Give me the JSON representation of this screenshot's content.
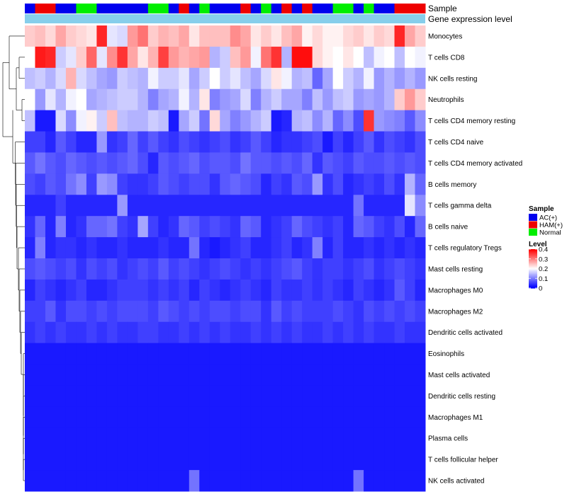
{
  "chart_data": {
    "type": "heatmap",
    "annotation_labels": [
      "Sample",
      "Gene expression level"
    ],
    "sample_groups": [
      "AC(+)",
      "HAM(+)",
      "HAM(+)",
      "AC(+)",
      "AC(+)",
      "Normal",
      "Normal",
      "AC(+)",
      "AC(+)",
      "AC(+)",
      "AC(+)",
      "AC(+)",
      "Normal",
      "Normal",
      "AC(+)",
      "HAM(+)",
      "AC(+)",
      "Normal",
      "AC(+)",
      "AC(+)",
      "AC(+)",
      "HAM(+)",
      "AC(+)",
      "Normal",
      "AC(+)",
      "HAM(+)",
      "AC(+)",
      "HAM(+)",
      "AC(+)",
      "AC(+)",
      "Normal",
      "Normal",
      "AC(+)",
      "Normal",
      "AC(+)",
      "AC(+)",
      "HAM(+)",
      "HAM(+)",
      "HAM(+)"
    ],
    "rows": [
      "Monocytes",
      "T cells CD8",
      "NK cells resting",
      "Neutrophils",
      "T cells CD4 memory resting",
      "T cells CD4 naive",
      "T cells CD4 memory activated",
      "B cells memory",
      "T cells gamma delta",
      "B cells naive",
      "T cells regulatory  Tregs",
      "Mast cells resting",
      "Macrophages M0",
      "Macrophages M2",
      "Dendritic cells activated",
      "Eosinophils",
      "Mast cells activated",
      "Dendritic cells resting",
      "Macrophages M1",
      "Plasma cells",
      "T cells follicular helper",
      "NK cells activated"
    ],
    "values": [
      [
        0.24,
        0.25,
        0.23,
        0.27,
        0.24,
        0.23,
        0.22,
        0.37,
        0.18,
        0.17,
        0.28,
        0.31,
        0.24,
        0.26,
        0.25,
        0.27,
        0.22,
        0.25,
        0.25,
        0.25,
        0.29,
        0.27,
        0.22,
        0.24,
        0.22,
        0.25,
        0.27,
        0.21,
        0.23,
        0.21,
        0.21,
        0.23,
        0.24,
        0.22,
        0.24,
        0.23,
        0.37,
        0.27,
        0.24
      ],
      [
        0.2,
        0.38,
        0.37,
        0.16,
        0.18,
        0.24,
        0.32,
        0.18,
        0.29,
        0.36,
        0.27,
        0.22,
        0.26,
        0.35,
        0.28,
        0.26,
        0.27,
        0.28,
        0.14,
        0.16,
        0.25,
        0.28,
        0.19,
        0.31,
        0.36,
        0.14,
        0.39,
        0.39,
        0.23,
        0.21,
        0.2,
        0.22,
        0.2,
        0.15,
        0.19,
        0.2,
        0.15,
        0.2,
        0.19
      ],
      [
        0.15,
        0.16,
        0.14,
        0.17,
        0.26,
        0.17,
        0.15,
        0.13,
        0.12,
        0.16,
        0.15,
        0.14,
        0.19,
        0.16,
        0.16,
        0.18,
        0.13,
        0.16,
        0.2,
        0.16,
        0.18,
        0.15,
        0.13,
        0.17,
        0.22,
        0.19,
        0.14,
        0.15,
        0.08,
        0.13,
        0.2,
        0.16,
        0.14,
        0.19,
        0.12,
        0.14,
        0.12,
        0.14,
        0.12
      ],
      [
        0.2,
        0.12,
        0.18,
        0.14,
        0.19,
        0.2,
        0.13,
        0.14,
        0.15,
        0.16,
        0.16,
        0.14,
        0.1,
        0.13,
        0.14,
        0.19,
        0.14,
        0.22,
        0.1,
        0.12,
        0.13,
        0.17,
        0.1,
        0.14,
        0.16,
        0.13,
        0.13,
        0.1,
        0.15,
        0.12,
        0.15,
        0.16,
        0.12,
        0.13,
        0.12,
        0.14,
        0.24,
        0.28,
        0.24
      ],
      [
        0.15,
        0.02,
        0.02,
        0.17,
        0.11,
        0.19,
        0.21,
        0.16,
        0.25,
        0.15,
        0.14,
        0.14,
        0.16,
        0.15,
        0.02,
        0.13,
        0.16,
        0.09,
        0.23,
        0.13,
        0.1,
        0.12,
        0.14,
        0.16,
        0.02,
        0.03,
        0.14,
        0.15,
        0.11,
        0.14,
        0.08,
        0.11,
        0.06,
        0.36,
        0.12,
        0.11,
        0.1,
        0.07,
        0.11
      ],
      [
        0.05,
        0.05,
        0.03,
        0.07,
        0.05,
        0.03,
        0.03,
        0.12,
        0.04,
        0.05,
        0.08,
        0.05,
        0.07,
        0.05,
        0.04,
        0.06,
        0.05,
        0.04,
        0.05,
        0.06,
        0.04,
        0.05,
        0.07,
        0.05,
        0.03,
        0.04,
        0.04,
        0.05,
        0.06,
        0.02,
        0.05,
        0.03,
        0.05,
        0.07,
        0.04,
        0.06,
        0.05,
        0.04,
        0.06
      ],
      [
        0.07,
        0.09,
        0.07,
        0.06,
        0.08,
        0.07,
        0.06,
        0.07,
        0.06,
        0.07,
        0.08,
        0.06,
        0.03,
        0.07,
        0.06,
        0.07,
        0.08,
        0.06,
        0.07,
        0.07,
        0.06,
        0.09,
        0.07,
        0.07,
        0.06,
        0.07,
        0.06,
        0.08,
        0.04,
        0.07,
        0.06,
        0.05,
        0.07,
        0.06,
        0.06,
        0.07,
        0.06,
        0.07,
        0.06
      ],
      [
        0.06,
        0.05,
        0.07,
        0.06,
        0.09,
        0.11,
        0.05,
        0.12,
        0.11,
        0.05,
        0.04,
        0.04,
        0.05,
        0.07,
        0.06,
        0.05,
        0.06,
        0.06,
        0.04,
        0.07,
        0.08,
        0.07,
        0.06,
        0.03,
        0.05,
        0.04,
        0.07,
        0.06,
        0.12,
        0.04,
        0.06,
        0.03,
        0.04,
        0.05,
        0.04,
        0.06,
        0.04,
        0.14,
        0.08
      ],
      [
        0.03,
        0.03,
        0.03,
        0.05,
        0.03,
        0.03,
        0.03,
        0.03,
        0.03,
        0.12,
        0.03,
        0.03,
        0.03,
        0.03,
        0.03,
        0.03,
        0.03,
        0.03,
        0.03,
        0.03,
        0.03,
        0.03,
        0.03,
        0.03,
        0.03,
        0.03,
        0.03,
        0.03,
        0.03,
        0.03,
        0.03,
        0.03,
        0.09,
        0.03,
        0.03,
        0.03,
        0.03,
        0.18,
        0.11
      ],
      [
        0.04,
        0.08,
        0.03,
        0.1,
        0.03,
        0.04,
        0.08,
        0.08,
        0.09,
        0.05,
        0.04,
        0.13,
        0.05,
        0.03,
        0.04,
        0.08,
        0.07,
        0.05,
        0.06,
        0.05,
        0.04,
        0.08,
        0.07,
        0.03,
        0.04,
        0.05,
        0.08,
        0.06,
        0.05,
        0.04,
        0.05,
        0.03,
        0.08,
        0.07,
        0.05,
        0.04,
        0.06,
        0.03,
        0.08
      ],
      [
        0.03,
        0.1,
        0.03,
        0.04,
        0.04,
        0.03,
        0.04,
        0.03,
        0.03,
        0.04,
        0.03,
        0.03,
        0.03,
        0.04,
        0.03,
        0.03,
        0.09,
        0.03,
        0.02,
        0.03,
        0.04,
        0.05,
        0.03,
        0.03,
        0.04,
        0.05,
        0.03,
        0.04,
        0.1,
        0.03,
        0.05,
        0.03,
        0.03,
        0.04,
        0.03,
        0.04,
        0.03,
        0.04,
        0.03
      ],
      [
        0.06,
        0.07,
        0.06,
        0.05,
        0.06,
        0.04,
        0.06,
        0.05,
        0.06,
        0.04,
        0.05,
        0.06,
        0.05,
        0.07,
        0.05,
        0.06,
        0.05,
        0.04,
        0.05,
        0.06,
        0.05,
        0.04,
        0.05,
        0.04,
        0.05,
        0.06,
        0.07,
        0.05,
        0.04,
        0.05,
        0.05,
        0.04,
        0.05,
        0.06,
        0.04,
        0.05,
        0.06,
        0.05,
        0.04
      ],
      [
        0.03,
        0.05,
        0.04,
        0.03,
        0.04,
        0.05,
        0.03,
        0.03,
        0.04,
        0.05,
        0.05,
        0.05,
        0.04,
        0.05,
        0.04,
        0.05,
        0.03,
        0.05,
        0.04,
        0.03,
        0.04,
        0.05,
        0.04,
        0.03,
        0.05,
        0.04,
        0.04,
        0.05,
        0.04,
        0.05,
        0.04,
        0.03,
        0.05,
        0.04,
        0.03,
        0.04,
        0.07,
        0.05,
        0.03
      ],
      [
        0.05,
        0.05,
        0.07,
        0.04,
        0.06,
        0.06,
        0.05,
        0.06,
        0.05,
        0.06,
        0.06,
        0.06,
        0.05,
        0.07,
        0.06,
        0.05,
        0.06,
        0.05,
        0.06,
        0.06,
        0.05,
        0.06,
        0.06,
        0.04,
        0.07,
        0.05,
        0.06,
        0.05,
        0.05,
        0.05,
        0.06,
        0.05,
        0.04,
        0.06,
        0.05,
        0.06,
        0.05,
        0.06,
        0.05
      ],
      [
        0.04,
        0.05,
        0.04,
        0.05,
        0.04,
        0.04,
        0.05,
        0.04,
        0.05,
        0.04,
        0.04,
        0.05,
        0.05,
        0.04,
        0.04,
        0.05,
        0.04,
        0.05,
        0.04,
        0.05,
        0.04,
        0.04,
        0.05,
        0.04,
        0.05,
        0.04,
        0.05,
        0.04,
        0.04,
        0.05,
        0.04,
        0.05,
        0.04,
        0.05,
        0.04,
        0.04,
        0.05,
        0.04,
        0.04
      ],
      [
        0.02,
        0.02,
        0.02,
        0.02,
        0.02,
        0.02,
        0.02,
        0.02,
        0.02,
        0.02,
        0.02,
        0.02,
        0.02,
        0.02,
        0.02,
        0.02,
        0.02,
        0.02,
        0.02,
        0.02,
        0.02,
        0.02,
        0.02,
        0.02,
        0.02,
        0.02,
        0.02,
        0.02,
        0.02,
        0.02,
        0.02,
        0.02,
        0.02,
        0.02,
        0.02,
        0.02,
        0.02,
        0.02,
        0.02
      ],
      [
        0.02,
        0.02,
        0.02,
        0.02,
        0.02,
        0.02,
        0.02,
        0.02,
        0.02,
        0.02,
        0.02,
        0.02,
        0.02,
        0.02,
        0.02,
        0.02,
        0.02,
        0.02,
        0.02,
        0.02,
        0.02,
        0.02,
        0.02,
        0.02,
        0.02,
        0.02,
        0.02,
        0.02,
        0.02,
        0.02,
        0.02,
        0.02,
        0.02,
        0.02,
        0.02,
        0.02,
        0.02,
        0.02,
        0.02
      ],
      [
        0.02,
        0.02,
        0.02,
        0.02,
        0.02,
        0.02,
        0.02,
        0.02,
        0.02,
        0.02,
        0.02,
        0.02,
        0.02,
        0.02,
        0.02,
        0.02,
        0.02,
        0.02,
        0.02,
        0.02,
        0.02,
        0.02,
        0.02,
        0.02,
        0.02,
        0.02,
        0.02,
        0.02,
        0.02,
        0.02,
        0.02,
        0.02,
        0.02,
        0.02,
        0.02,
        0.02,
        0.02,
        0.02,
        0.02
      ],
      [
        0.02,
        0.02,
        0.02,
        0.02,
        0.02,
        0.02,
        0.02,
        0.02,
        0.02,
        0.02,
        0.02,
        0.02,
        0.02,
        0.02,
        0.02,
        0.02,
        0.02,
        0.02,
        0.02,
        0.02,
        0.02,
        0.02,
        0.02,
        0.02,
        0.02,
        0.02,
        0.02,
        0.02,
        0.02,
        0.02,
        0.02,
        0.02,
        0.02,
        0.02,
        0.02,
        0.02,
        0.02,
        0.02,
        0.02
      ],
      [
        0.02,
        0.02,
        0.02,
        0.02,
        0.02,
        0.02,
        0.02,
        0.02,
        0.02,
        0.02,
        0.02,
        0.02,
        0.02,
        0.02,
        0.02,
        0.02,
        0.02,
        0.02,
        0.02,
        0.02,
        0.02,
        0.02,
        0.02,
        0.02,
        0.02,
        0.02,
        0.02,
        0.02,
        0.02,
        0.02,
        0.02,
        0.02,
        0.02,
        0.02,
        0.02,
        0.02,
        0.02,
        0.02,
        0.02
      ],
      [
        0.02,
        0.02,
        0.02,
        0.02,
        0.02,
        0.02,
        0.02,
        0.02,
        0.02,
        0.02,
        0.02,
        0.02,
        0.02,
        0.02,
        0.02,
        0.02,
        0.02,
        0.02,
        0.02,
        0.02,
        0.02,
        0.02,
        0.02,
        0.02,
        0.02,
        0.02,
        0.02,
        0.02,
        0.02,
        0.02,
        0.02,
        0.02,
        0.02,
        0.02,
        0.02,
        0.02,
        0.02,
        0.02,
        0.02
      ],
      [
        0.02,
        0.02,
        0.02,
        0.02,
        0.02,
        0.02,
        0.02,
        0.02,
        0.02,
        0.02,
        0.02,
        0.02,
        0.02,
        0.02,
        0.02,
        0.02,
        0.09,
        0.02,
        0.02,
        0.02,
        0.02,
        0.02,
        0.02,
        0.02,
        0.02,
        0.02,
        0.02,
        0.02,
        0.02,
        0.02,
        0.02,
        0.02,
        0.09,
        0.02,
        0.02,
        0.02,
        0.02,
        0.02,
        0.02
      ]
    ],
    "legend": {
      "sample_title": "Sample",
      "sample_entries": [
        "AC(+)",
        "HAM(+)",
        "Normal"
      ],
      "level_title": "Level",
      "level_ticks": [
        "0.4",
        "0.3",
        "0.2",
        "0.1",
        "0"
      ],
      "range": [
        0,
        0.4
      ]
    },
    "colors": {
      "low": "#0000ff",
      "mid": "#ffffff",
      "high": "#ff0000",
      "ac": "#0000ee",
      "ham": "#ee0000",
      "normal": "#00ee00",
      "expression_bar": "#87ceeb"
    }
  }
}
